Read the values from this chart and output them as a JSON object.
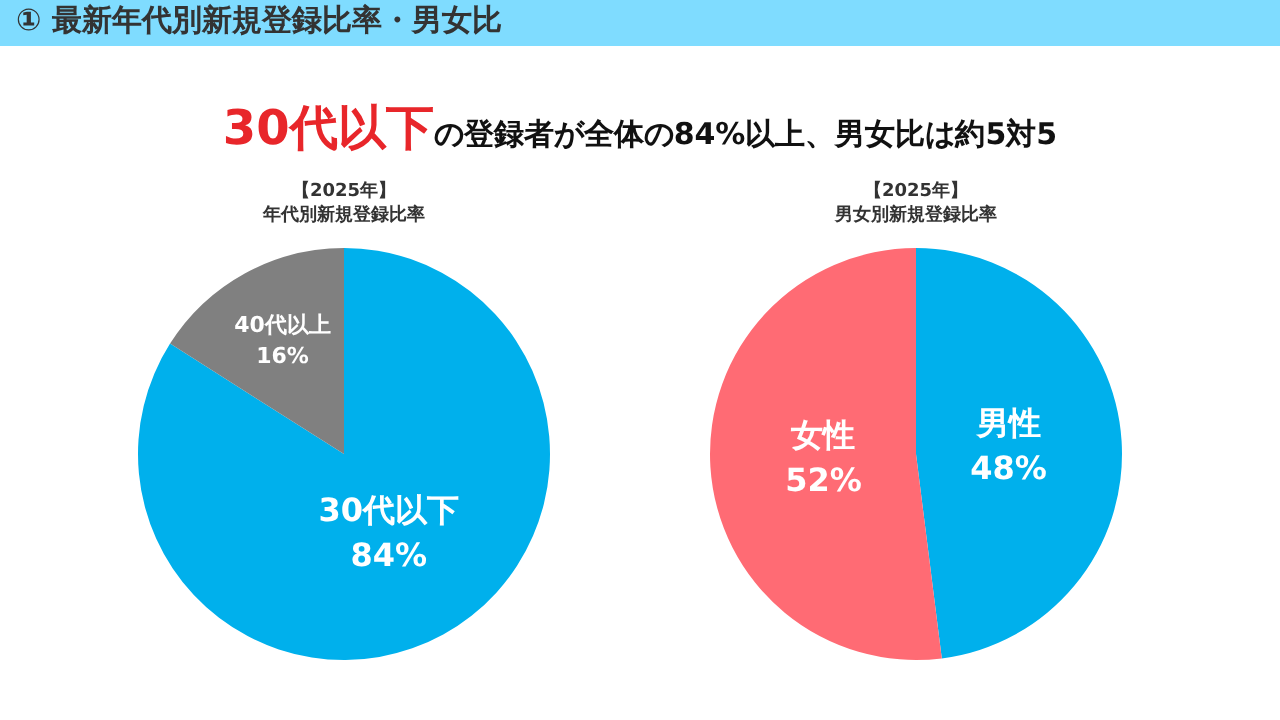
{
  "chart_data": [
    {
      "type": "pie",
      "title": "【2025年】",
      "subtitle": "年代別新規登録比率",
      "categories": [
        "30代以下",
        "40代以上"
      ],
      "values": [
        84,
        16
      ],
      "value_labels": [
        "84%",
        "16%"
      ],
      "colors": [
        "#00b0ec",
        "#808080"
      ],
      "annotations": [
        "① 最新年代別新規登録比率・男女比",
        "30代以下",
        "の登録者が全体の84%以上、男女比は約5対5"
      ]
    },
    {
      "type": "pie",
      "title": "【2025年】",
      "subtitle": "男女別新規登録比率",
      "categories": [
        "男性",
        "女性"
      ],
      "values": [
        48,
        52
      ],
      "value_labels": [
        "48%",
        "52%"
      ],
      "colors": [
        "#00b0ec",
        "#ff6b74"
      ]
    }
  ]
}
